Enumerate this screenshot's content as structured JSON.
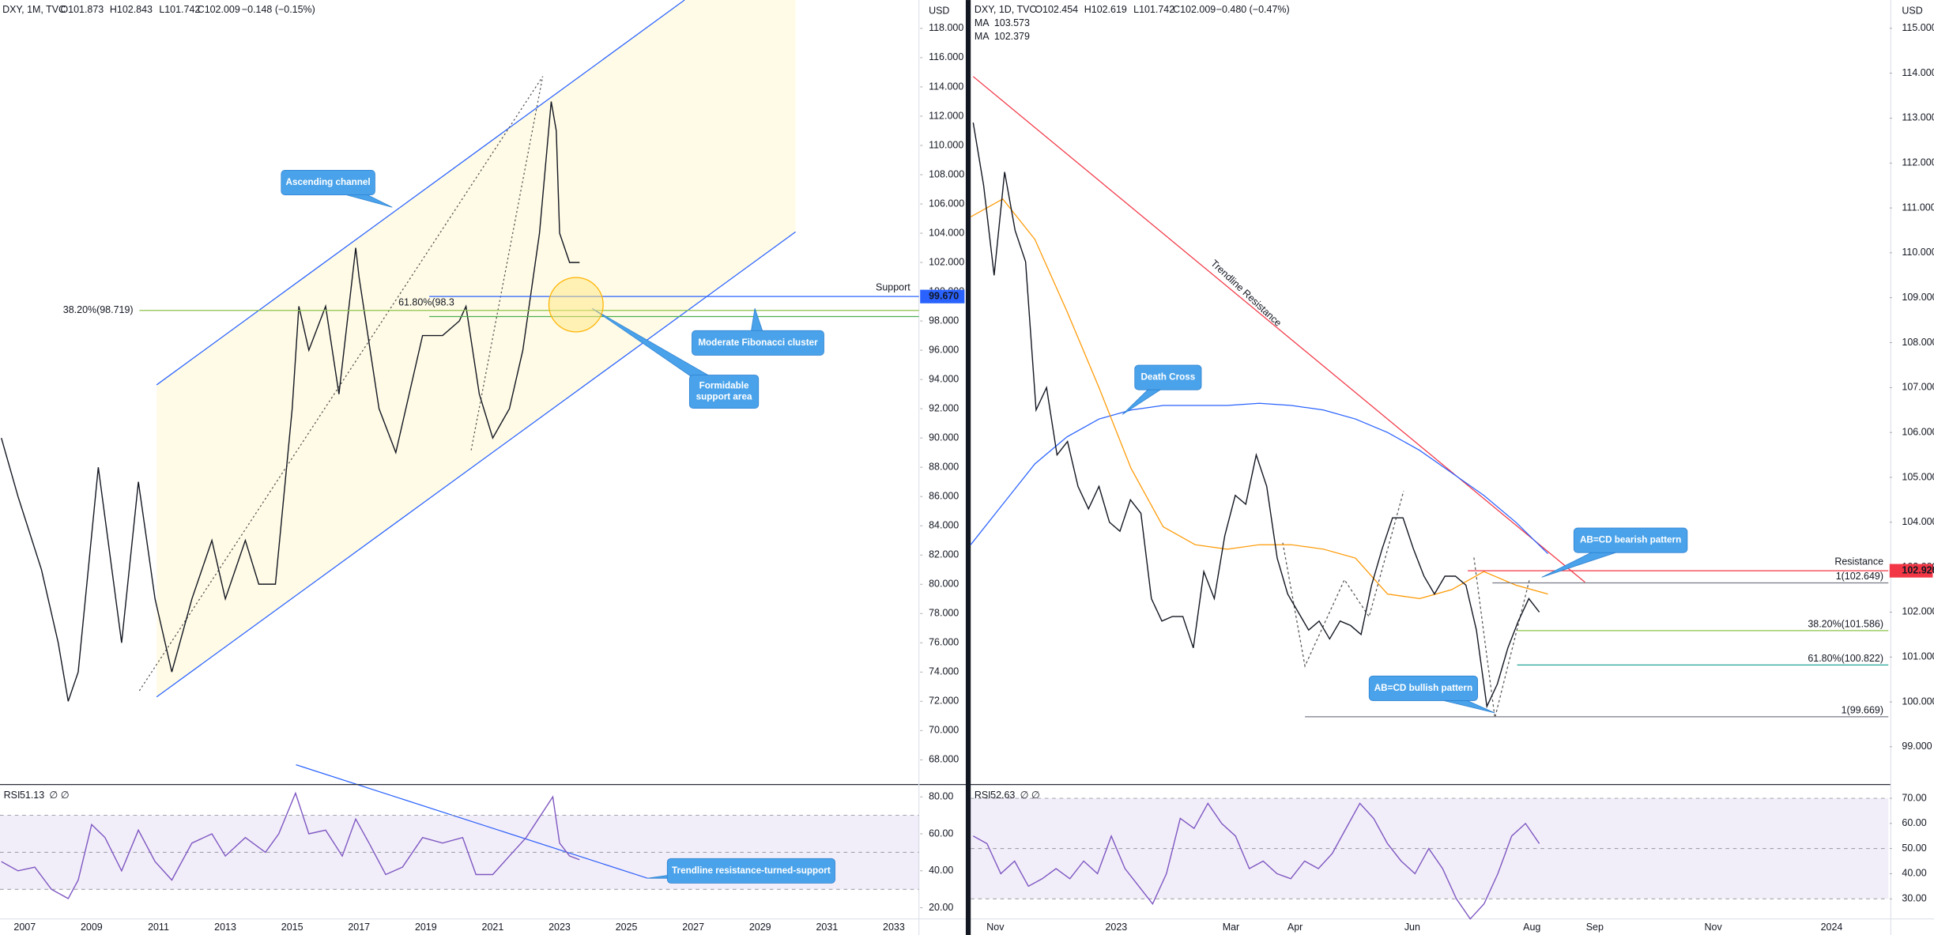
{
  "chart_data": [
    {
      "type": "line",
      "header": {
        "symbol": "DXY, 1M, TVC",
        "open": "O101.873",
        "high": "H102.843",
        "low": "L101.742",
        "close": "C102.009",
        "change": "−0.148 (−0.15%)"
      },
      "currency": "USD",
      "color": "#131722",
      "xlim": [
        2006.26,
        2033.75
      ],
      "xticks": [
        2007,
        2009,
        2011,
        2013,
        2015,
        2017,
        2019,
        2021,
        2023,
        2025,
        2027,
        2029,
        2031,
        2033
      ],
      "ylim": [
        66.31,
        119.94
      ],
      "yticks": [
        {
          "value": 68,
          "label": "68.000"
        },
        {
          "value": 70,
          "label": "70.000"
        },
        {
          "value": 72,
          "label": "72.000"
        },
        {
          "value": 74,
          "label": "74.000"
        },
        {
          "value": 76,
          "label": "76.000"
        },
        {
          "value": 78,
          "label": "78.000"
        },
        {
          "value": 80,
          "label": "80.000"
        },
        {
          "value": 82,
          "label": "82.000"
        },
        {
          "value": 84,
          "label": "84.000"
        },
        {
          "value": 86,
          "label": "86.000"
        },
        {
          "value": 88,
          "label": "88.000"
        },
        {
          "value": 90,
          "label": "90.000"
        },
        {
          "value": 92,
          "label": "92.000"
        },
        {
          "value": 94,
          "label": "94.000"
        },
        {
          "value": 96,
          "label": "96.000"
        },
        {
          "value": 98,
          "label": "98.000"
        },
        {
          "value": 100,
          "label": "100.000"
        },
        {
          "value": 102,
          "label": "102.000"
        },
        {
          "value": 104,
          "label": "104.000"
        },
        {
          "value": 106,
          "label": "106.000"
        },
        {
          "value": 108,
          "label": "108.000"
        },
        {
          "value": 110,
          "label": "110.000"
        },
        {
          "value": 112,
          "label": "112.000"
        },
        {
          "value": 114,
          "label": "114.000"
        },
        {
          "value": 116,
          "label": "116.000"
        },
        {
          "value": 118,
          "label": "118.000"
        }
      ],
      "x": [
        2006.3,
        2006.8,
        2007.5,
        2008.0,
        2008.3,
        2008.6,
        2009.2,
        2009.9,
        2010.4,
        2010.9,
        2011.4,
        2012.0,
        2012.6,
        2013.0,
        2013.6,
        2014.0,
        2014.5,
        2015.0,
        2015.2,
        2015.5,
        2016.0,
        2016.4,
        2016.9,
        2017.0,
        2017.6,
        2018.1,
        2018.9,
        2019.5,
        2020.0,
        2020.2,
        2020.6,
        2021.0,
        2021.5,
        2021.9,
        2022.4,
        2022.75,
        2022.9,
        2023.0,
        2023.3,
        2023.6
      ],
      "values": [
        90,
        86,
        81,
        76,
        72,
        74,
        88,
        76,
        87,
        79,
        74,
        79,
        83,
        79,
        83,
        80,
        80,
        92,
        99,
        96,
        99,
        93,
        103,
        101,
        92,
        89,
        97,
        97,
        98,
        99,
        93,
        90,
        92,
        96,
        104,
        113,
        111,
        104,
        102,
        102
      ],
      "levels": [
        {
          "value": 99.67,
          "label": "99.670",
          "name": "Support",
          "color": "#2962ff"
        },
        {
          "value": 98.719,
          "label": "38.20%(98.719)",
          "color": "#8bc34a"
        },
        {
          "value": 98.3,
          "label": "61.80%(98.3",
          "color": "#4caf50"
        }
      ],
      "rsi": {
        "name": "RSI",
        "value_label": "51.13",
        "extra": "∅ ∅",
        "color": "#7e57c2",
        "ylim": [
          14,
          86
        ],
        "levels": [
          70,
          50,
          30
        ],
        "yticks": [
          {
            "value": 20,
            "label": "20.00"
          },
          {
            "value": 40,
            "label": "40.00"
          },
          {
            "value": 60,
            "label": "60.00"
          },
          {
            "value": 80,
            "label": "80.00"
          }
        ],
        "x": [
          2006.3,
          2006.8,
          2007.3,
          2007.8,
          2008.3,
          2008.6,
          2009.0,
          2009.4,
          2009.9,
          2010.4,
          2010.9,
          2011.4,
          2012.0,
          2012.6,
          2013.0,
          2013.6,
          2014.2,
          2014.6,
          2015.1,
          2015.5,
          2016.0,
          2016.5,
          2016.9,
          2017.3,
          2017.8,
          2018.3,
          2018.9,
          2019.5,
          2020.1,
          2020.5,
          2021.0,
          2021.5,
          2022.0,
          2022.8,
          2023.0,
          2023.3,
          2023.6
        ],
        "values": [
          45,
          40,
          42,
          30,
          25,
          35,
          65,
          58,
          40,
          62,
          45,
          35,
          55,
          60,
          48,
          58,
          50,
          60,
          82,
          60,
          62,
          48,
          68,
          55,
          38,
          42,
          58,
          55,
          58,
          38,
          38,
          48,
          58,
          80,
          55,
          48,
          46
        ]
      },
      "annotations": [
        "Ascending channel",
        "Moderate Fibonacci cluster",
        [
          "Formidable",
          "support area"
        ],
        "Trendline resistance-turned-support"
      ]
    },
    {
      "type": "line",
      "header": {
        "symbol": "DXY, 1D, TVC",
        "open": "O102.454",
        "high": "H102.619",
        "low": "L101.742",
        "close": "C102.009",
        "change": "−0.480 (−0.47%)"
      },
      "currency": "USD",
      "color": "#131722",
      "time_labels": [
        "Nov",
        "2023",
        "Mar",
        "Apr",
        "Jun",
        "Aug",
        "Sep",
        "Nov",
        "2024"
      ],
      "ylim": [
        98.16,
        115.63
      ],
      "yticks": [
        {
          "value": 99,
          "label": "99.000"
        },
        {
          "value": 100,
          "label": "100.000"
        },
        {
          "value": 101,
          "label": "101.000"
        },
        {
          "value": 102,
          "label": "102.000"
        },
        {
          "value": 103,
          "label": "103.000"
        },
        {
          "value": 104,
          "label": "104.000"
        },
        {
          "value": 105,
          "label": "105.000"
        },
        {
          "value": 106,
          "label": "106.000"
        },
        {
          "value": 107,
          "label": "107.000"
        },
        {
          "value": 108,
          "label": "108.000"
        },
        {
          "value": 109,
          "label": "109.000"
        },
        {
          "value": 110,
          "label": "110.000"
        },
        {
          "value": 111,
          "label": "111.000"
        },
        {
          "value": 112,
          "label": "112.000"
        },
        {
          "value": 113,
          "label": "113.000"
        },
        {
          "value": 114,
          "label": "114.000"
        },
        {
          "value": 115,
          "label": "115.000"
        }
      ],
      "values": [
        112.9,
        111.5,
        109.5,
        111.8,
        110.5,
        109.8,
        106.5,
        107,
        105.5,
        105.8,
        104.8,
        104.3,
        104.8,
        104,
        103.8,
        104.5,
        104.2,
        102.3,
        101.8,
        101.9,
        101.9,
        101.2,
        102.9,
        102.3,
        103.7,
        104.6,
        104.4,
        105.5,
        104.8,
        103.2,
        102.4,
        102.0,
        101.6,
        101.8,
        101.4,
        101.8,
        101.7,
        101.5,
        102.6,
        103.4,
        104.1,
        104.1,
        103.4,
        102.8,
        102.4,
        102.8,
        102.8,
        102.6,
        101.6,
        99.9,
        100.4,
        101.2,
        101.8,
        102.3,
        102.0
      ],
      "ma": [
        {
          "name": "MA",
          "value_label": "103.573",
          "color": "#2962ff",
          "values": [
            103.5,
            104.4,
            105.3,
            105.9,
            106.3,
            106.5,
            106.6,
            106.6,
            106.6,
            106.65,
            106.6,
            106.5,
            106.3,
            106.0,
            105.6,
            105.1,
            104.6,
            104.0,
            103.3
          ]
        },
        {
          "name": "MA",
          "value_label": "102.379",
          "color": "#ff9800",
          "values": [
            110.8,
            111.2,
            110.3,
            108.7,
            107.0,
            105.2,
            103.9,
            103.5,
            103.4,
            103.5,
            103.5,
            103.4,
            103.2,
            102.4,
            102.3,
            102.5,
            102.9,
            102.6,
            102.4
          ]
        }
      ],
      "levels": [
        {
          "value": 102.92,
          "label": "102.920",
          "name": "Resistance",
          "color": "#f23645"
        },
        {
          "value": 102.649,
          "label": "1(102.649)",
          "color": "#787b86"
        },
        {
          "value": 101.586,
          "label": "38.20%(101.586)",
          "color": "#8bc34a"
        },
        {
          "value": 100.822,
          "label": "61.80%(100.822)",
          "color": "#26a69a"
        },
        {
          "value": 99.669,
          "label": "1(99.669)",
          "color": "#787b86"
        }
      ],
      "rsi": {
        "name": "RSI",
        "value_label": "52.63",
        "extra": "∅ ∅",
        "color": "#7e57c2",
        "ylim": [
          22,
          75
        ],
        "levels": [
          70,
          50,
          30
        ],
        "yticks": [
          {
            "value": 30,
            "label": "30.00"
          },
          {
            "value": 40,
            "label": "40.00"
          },
          {
            "value": 50,
            "label": "50.00"
          },
          {
            "value": 60,
            "label": "60.00"
          },
          {
            "value": 70,
            "label": "70.00"
          }
        ],
        "values": [
          55,
          52,
          40,
          45,
          35,
          38,
          42,
          38,
          45,
          40,
          55,
          42,
          35,
          28,
          40,
          62,
          58,
          68,
          60,
          55,
          42,
          45,
          40,
          38,
          45,
          42,
          48,
          58,
          68,
          62,
          52,
          45,
          40,
          50,
          42,
          30,
          22,
          28,
          40,
          55,
          60,
          52
        ]
      },
      "annotations": [
        "Death Cross",
        "Trendline Resistance",
        "AB=CD bearish pattern",
        "AB=CD bullish pattern"
      ]
    }
  ]
}
